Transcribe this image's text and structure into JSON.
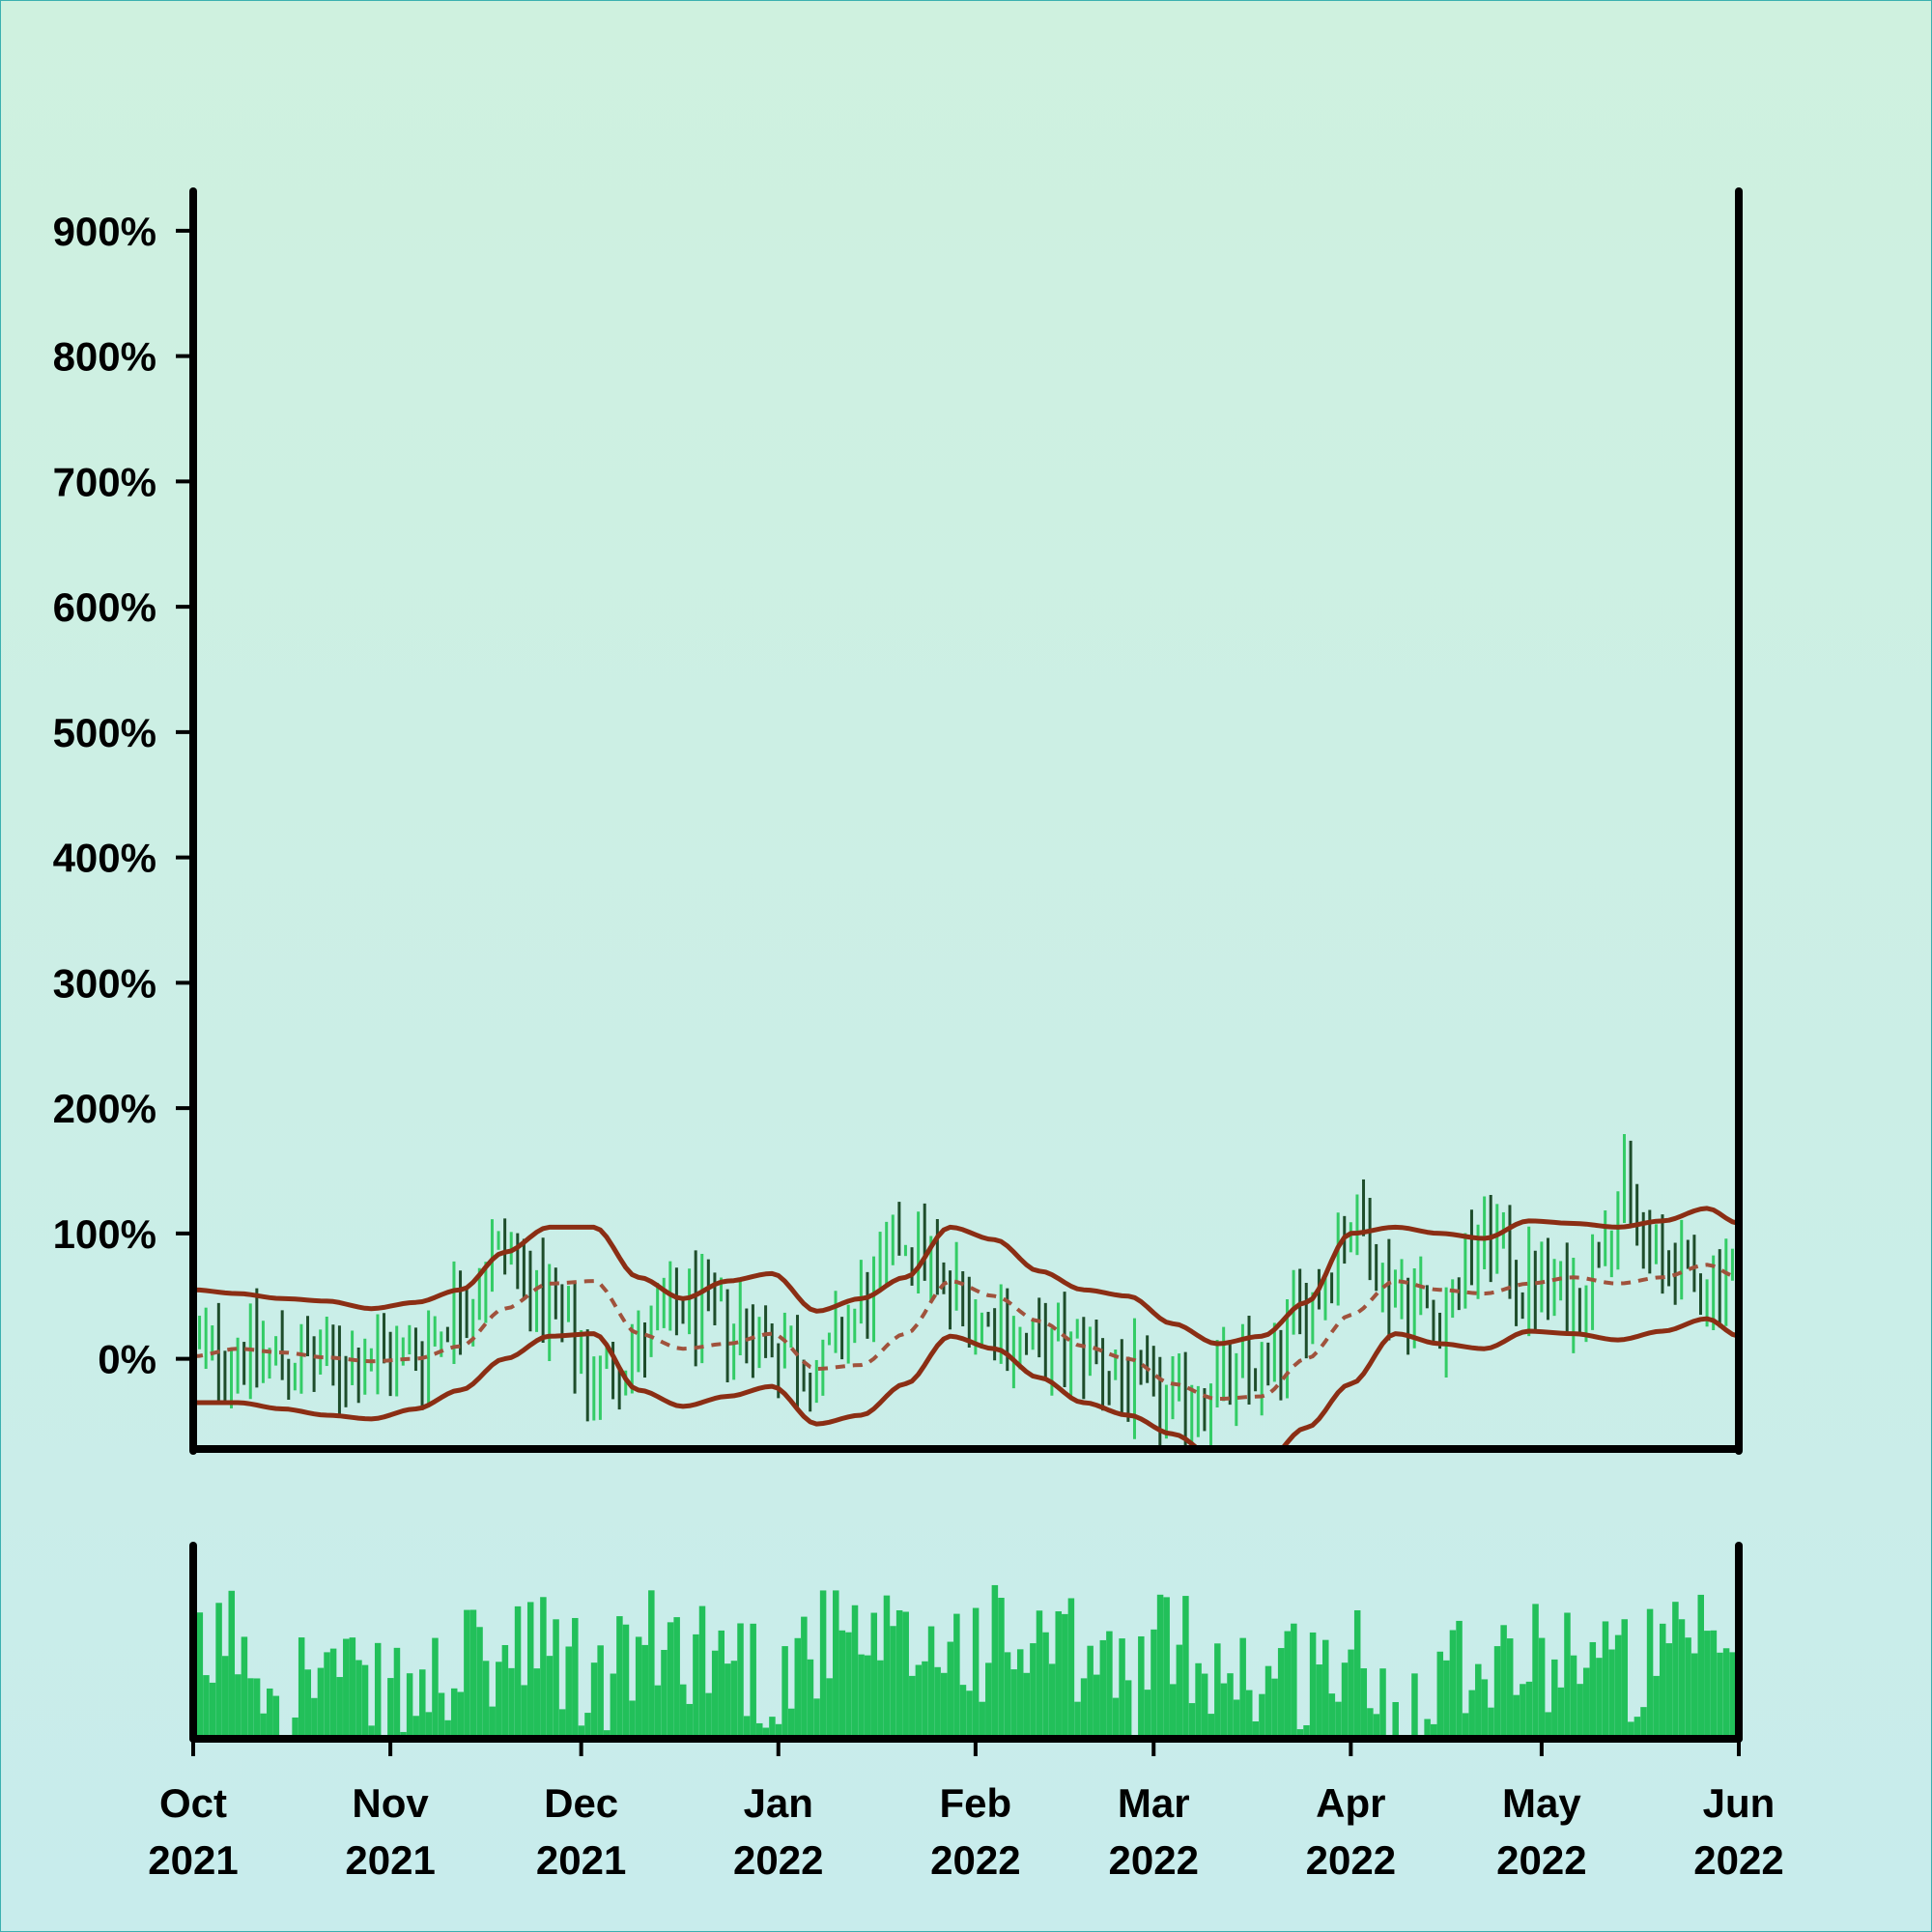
{
  "chart_data": [
    {
      "type": "ohlc",
      "y_ticks": [
        "0%",
        "100%",
        "200%",
        "300%",
        "400%",
        "500%",
        "600%",
        "700%",
        "800%",
        "900%"
      ],
      "y_tick_values": [
        0,
        100,
        200,
        300,
        400,
        500,
        600,
        700,
        800,
        900
      ],
      "ylim": [
        -72,
        930
      ],
      "xlim": [
        "2021-10-01",
        "2022-06-01"
      ],
      "x_ticks": [
        {
          "date": "2021-10-01",
          "month": "Oct",
          "year": "2021"
        },
        {
          "date": "2021-11-01",
          "month": "Nov",
          "year": "2021"
        },
        {
          "date": "2021-12-01",
          "month": "Dec",
          "year": "2021"
        },
        {
          "date": "2022-01-01",
          "month": "Jan",
          "year": "2022"
        },
        {
          "date": "2022-02-01",
          "month": "Feb",
          "year": "2022"
        },
        {
          "date": "2022-03-01",
          "month": "Mar",
          "year": "2022"
        },
        {
          "date": "2022-04-01",
          "month": "Apr",
          "year": "2022"
        },
        {
          "date": "2022-05-01",
          "month": "May",
          "year": "2022"
        },
        {
          "date": "2022-06-01",
          "month": "Jun",
          "year": "2022"
        }
      ],
      "date_step_days": 1,
      "series_close_pct": [
        {
          "date": "2021-10-01",
          "value": 5
        },
        {
          "date": "2021-10-08",
          "value": 8
        },
        {
          "date": "2021-10-15",
          "value": 0
        },
        {
          "date": "2021-10-22",
          "value": -5
        },
        {
          "date": "2021-10-29",
          "value": 0
        },
        {
          "date": "2021-11-05",
          "value": 5
        },
        {
          "date": "2021-11-12",
          "value": 45
        },
        {
          "date": "2021-11-19",
          "value": 90
        },
        {
          "date": "2021-11-26",
          "value": 35
        },
        {
          "date": "2021-12-03",
          "value": -15
        },
        {
          "date": "2021-12-10",
          "value": 10
        },
        {
          "date": "2021-12-17",
          "value": 40
        },
        {
          "date": "2021-12-24",
          "value": 30
        },
        {
          "date": "2021-12-31",
          "value": 15
        },
        {
          "date": "2022-01-07",
          "value": -10
        },
        {
          "date": "2022-01-14",
          "value": 40
        },
        {
          "date": "2022-01-21",
          "value": 100
        },
        {
          "date": "2022-01-28",
          "value": 55
        },
        {
          "date": "2022-02-04",
          "value": 30
        },
        {
          "date": "2022-02-11",
          "value": 5
        },
        {
          "date": "2022-02-18",
          "value": 10
        },
        {
          "date": "2022-02-25",
          "value": -20
        },
        {
          "date": "2022-03-04",
          "value": -40
        },
        {
          "date": "2022-03-11",
          "value": -20
        },
        {
          "date": "2022-03-18",
          "value": -10
        },
        {
          "date": "2022-03-25",
          "value": 40
        },
        {
          "date": "2022-04-01",
          "value": 110
        },
        {
          "date": "2022-04-08",
          "value": 55
        },
        {
          "date": "2022-04-15",
          "value": 35
        },
        {
          "date": "2022-04-22",
          "value": 95
        },
        {
          "date": "2022-04-29",
          "value": 60
        },
        {
          "date": "2022-05-06",
          "value": 45
        },
        {
          "date": "2022-05-13",
          "value": 130
        },
        {
          "date": "2022-05-20",
          "value": 75
        },
        {
          "date": "2022-05-27",
          "value": 60
        },
        {
          "date": "2022-06-01",
          "value": 80
        }
      ],
      "bollinger_mid_pct": [
        {
          "date": "2021-10-01",
          "value": 2
        },
        {
          "date": "2021-10-08",
          "value": 8
        },
        {
          "date": "2021-10-15",
          "value": 5
        },
        {
          "date": "2021-10-22",
          "value": 1
        },
        {
          "date": "2021-10-29",
          "value": -2
        },
        {
          "date": "2021-11-05",
          "value": 0
        },
        {
          "date": "2021-11-12",
          "value": 10
        },
        {
          "date": "2021-11-19",
          "value": 40
        },
        {
          "date": "2021-11-26",
          "value": 60
        },
        {
          "date": "2021-12-03",
          "value": 62
        },
        {
          "date": "2021-12-10",
          "value": 20
        },
        {
          "date": "2021-12-17",
          "value": 8
        },
        {
          "date": "2021-12-24",
          "value": 12
        },
        {
          "date": "2021-12-31",
          "value": 20
        },
        {
          "date": "2022-01-07",
          "value": -8
        },
        {
          "date": "2022-01-14",
          "value": -5
        },
        {
          "date": "2022-01-21",
          "value": 20
        },
        {
          "date": "2022-01-28",
          "value": 62
        },
        {
          "date": "2022-02-04",
          "value": 50
        },
        {
          "date": "2022-02-11",
          "value": 30
        },
        {
          "date": "2022-02-18",
          "value": 10
        },
        {
          "date": "2022-02-25",
          "value": 0
        },
        {
          "date": "2022-03-04",
          "value": -20
        },
        {
          "date": "2022-03-11",
          "value": -32
        },
        {
          "date": "2022-03-18",
          "value": -30
        },
        {
          "date": "2022-03-25",
          "value": 0
        },
        {
          "date": "2022-04-01",
          "value": 35
        },
        {
          "date": "2022-04-08",
          "value": 62
        },
        {
          "date": "2022-04-15",
          "value": 55
        },
        {
          "date": "2022-04-22",
          "value": 52
        },
        {
          "date": "2022-04-29",
          "value": 60
        },
        {
          "date": "2022-05-06",
          "value": 65
        },
        {
          "date": "2022-05-13",
          "value": 60
        },
        {
          "date": "2022-05-20",
          "value": 65
        },
        {
          "date": "2022-05-27",
          "value": 75
        },
        {
          "date": "2022-06-01",
          "value": 65
        }
      ],
      "bollinger_upper_pct": [
        {
          "date": "2021-10-01",
          "value": 55
        },
        {
          "date": "2021-10-08",
          "value": 52
        },
        {
          "date": "2021-10-15",
          "value": 48
        },
        {
          "date": "2021-10-22",
          "value": 46
        },
        {
          "date": "2021-10-29",
          "value": 40
        },
        {
          "date": "2021-11-05",
          "value": 45
        },
        {
          "date": "2021-11-12",
          "value": 55
        },
        {
          "date": "2021-11-19",
          "value": 85
        },
        {
          "date": "2021-11-26",
          "value": 105
        },
        {
          "date": "2021-12-03",
          "value": 105
        },
        {
          "date": "2021-12-10",
          "value": 65
        },
        {
          "date": "2021-12-17",
          "value": 48
        },
        {
          "date": "2021-12-24",
          "value": 62
        },
        {
          "date": "2021-12-31",
          "value": 68
        },
        {
          "date": "2022-01-07",
          "value": 38
        },
        {
          "date": "2022-01-14",
          "value": 48
        },
        {
          "date": "2022-01-21",
          "value": 65
        },
        {
          "date": "2022-01-28",
          "value": 105
        },
        {
          "date": "2022-02-04",
          "value": 95
        },
        {
          "date": "2022-02-11",
          "value": 70
        },
        {
          "date": "2022-02-18",
          "value": 55
        },
        {
          "date": "2022-02-25",
          "value": 50
        },
        {
          "date": "2022-03-04",
          "value": 28
        },
        {
          "date": "2022-03-11",
          "value": 12
        },
        {
          "date": "2022-03-18",
          "value": 18
        },
        {
          "date": "2022-03-25",
          "value": 45
        },
        {
          "date": "2022-04-01",
          "value": 100
        },
        {
          "date": "2022-04-08",
          "value": 105
        },
        {
          "date": "2022-04-15",
          "value": 100
        },
        {
          "date": "2022-04-22",
          "value": 96
        },
        {
          "date": "2022-04-29",
          "value": 110
        },
        {
          "date": "2022-05-06",
          "value": 108
        },
        {
          "date": "2022-05-13",
          "value": 105
        },
        {
          "date": "2022-05-20",
          "value": 110
        },
        {
          "date": "2022-05-27",
          "value": 120
        },
        {
          "date": "2022-06-01",
          "value": 108
        }
      ],
      "bollinger_lower_pct": [
        {
          "date": "2021-10-01",
          "value": -35
        },
        {
          "date": "2021-10-08",
          "value": -35
        },
        {
          "date": "2021-10-15",
          "value": -40
        },
        {
          "date": "2021-10-22",
          "value": -45
        },
        {
          "date": "2021-10-29",
          "value": -48
        },
        {
          "date": "2021-11-05",
          "value": -40
        },
        {
          "date": "2021-11-12",
          "value": -25
        },
        {
          "date": "2021-11-19",
          "value": 0
        },
        {
          "date": "2021-11-26",
          "value": 18
        },
        {
          "date": "2021-12-03",
          "value": 20
        },
        {
          "date": "2021-12-10",
          "value": -25
        },
        {
          "date": "2021-12-17",
          "value": -38
        },
        {
          "date": "2021-12-24",
          "value": -30
        },
        {
          "date": "2021-12-31",
          "value": -22
        },
        {
          "date": "2022-01-07",
          "value": -52
        },
        {
          "date": "2022-01-14",
          "value": -45
        },
        {
          "date": "2022-01-21",
          "value": -20
        },
        {
          "date": "2022-01-28",
          "value": 18
        },
        {
          "date": "2022-02-04",
          "value": 8
        },
        {
          "date": "2022-02-11",
          "value": -15
        },
        {
          "date": "2022-02-18",
          "value": -35
        },
        {
          "date": "2022-02-25",
          "value": -45
        },
        {
          "date": "2022-03-04",
          "value": -60
        },
        {
          "date": "2022-03-11",
          "value": -80
        },
        {
          "date": "2022-03-18",
          "value": -85
        },
        {
          "date": "2022-03-25",
          "value": -55
        },
        {
          "date": "2022-04-01",
          "value": -20
        },
        {
          "date": "2022-04-08",
          "value": 20
        },
        {
          "date": "2022-04-15",
          "value": 12
        },
        {
          "date": "2022-04-22",
          "value": 8
        },
        {
          "date": "2022-04-29",
          "value": 22
        },
        {
          "date": "2022-05-06",
          "value": 20
        },
        {
          "date": "2022-05-13",
          "value": 15
        },
        {
          "date": "2022-05-20",
          "value": 22
        },
        {
          "date": "2022-05-27",
          "value": 32
        },
        {
          "date": "2022-06-01",
          "value": 18
        }
      ],
      "volume_relative": [
        {
          "date": "2021-10-01",
          "value": 0.45
        },
        {
          "date": "2021-10-08",
          "value": 0.6
        },
        {
          "date": "2021-10-15",
          "value": 0.3
        },
        {
          "date": "2021-10-22",
          "value": 0.4
        },
        {
          "date": "2021-10-29",
          "value": 0.2
        },
        {
          "date": "2021-11-05",
          "value": 0.25
        },
        {
          "date": "2021-11-12",
          "value": 0.4
        },
        {
          "date": "2021-11-19",
          "value": 0.45
        },
        {
          "date": "2021-11-26",
          "value": 0.5
        },
        {
          "date": "2021-12-03",
          "value": 0.3
        },
        {
          "date": "2021-12-10",
          "value": 0.5
        },
        {
          "date": "2021-12-17",
          "value": 0.55
        },
        {
          "date": "2021-12-24",
          "value": 0.5
        },
        {
          "date": "2021-12-31",
          "value": 0.35
        },
        {
          "date": "2022-01-07",
          "value": 0.55
        },
        {
          "date": "2022-01-14",
          "value": 0.5
        },
        {
          "date": "2022-01-21",
          "value": 0.5
        },
        {
          "date": "2022-01-28",
          "value": 0.55
        },
        {
          "date": "2022-02-04",
          "value": 0.55
        },
        {
          "date": "2022-02-11",
          "value": 0.5
        },
        {
          "date": "2022-02-18",
          "value": 0.45
        },
        {
          "date": "2022-02-25",
          "value": 0.35
        },
        {
          "date": "2022-03-04",
          "value": 0.55
        },
        {
          "date": "2022-03-11",
          "value": 0.45
        },
        {
          "date": "2022-03-18",
          "value": 0.35
        },
        {
          "date": "2022-03-25",
          "value": 0.4
        },
        {
          "date": "2022-04-01",
          "value": 0.45
        },
        {
          "date": "2022-04-08",
          "value": 0.15
        },
        {
          "date": "2022-04-15",
          "value": 0.45
        },
        {
          "date": "2022-04-22",
          "value": 0.5
        },
        {
          "date": "2022-04-29",
          "value": 0.45
        },
        {
          "date": "2022-05-06",
          "value": 0.55
        },
        {
          "date": "2022-05-13",
          "value": 0.4
        },
        {
          "date": "2022-05-20",
          "value": 0.45
        },
        {
          "date": "2022-05-27",
          "value": 0.5
        },
        {
          "date": "2022-06-01",
          "value": 0.6
        }
      ],
      "colors": {
        "background_top": "#cff1df",
        "background_bottom": "#c8ecec",
        "up": "#33cc66",
        "down": "#1e4d2b",
        "band": "#8b2e14",
        "mid": "#a0523c",
        "volume": "#22c05a",
        "axis": "#000000"
      },
      "grid": false,
      "legend": "none"
    }
  ]
}
